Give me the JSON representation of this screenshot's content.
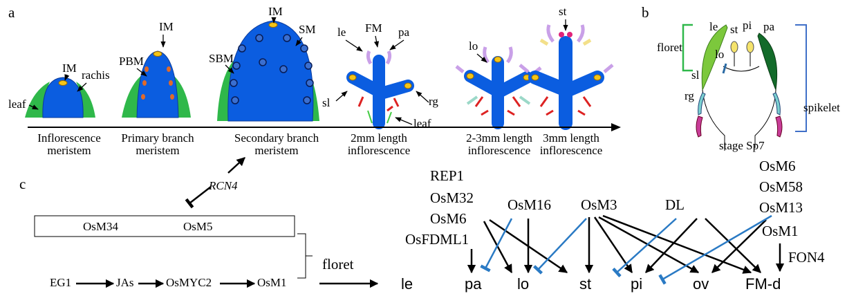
{
  "panel_a": {
    "label": "a",
    "stages": [
      {
        "caption": [
          "Inflorescence",
          "meristem"
        ],
        "annotations": [
          "IM",
          "rachis",
          "leaf"
        ]
      },
      {
        "caption": [
          "Primary branch",
          "meristem"
        ],
        "annotations": [
          "PBM",
          "IM"
        ]
      },
      {
        "caption": [
          "Secondary branch",
          "meristem"
        ],
        "annotations": [
          "IM",
          "SM",
          "SBM"
        ]
      },
      {
        "caption": [
          "2mm length",
          "inflorescence"
        ],
        "annotations": [
          "le",
          "FM",
          "pa",
          "sl",
          "rg",
          "leaf"
        ]
      },
      {
        "caption": [
          "2-3mm length",
          "inflorescence"
        ],
        "annotations": [
          "lo"
        ]
      },
      {
        "caption": [
          "3mm length",
          "inflorescence"
        ],
        "annotations": [
          "st"
        ]
      }
    ]
  },
  "panel_b": {
    "label": "b",
    "floret": "floret",
    "spikelet": "spikelet",
    "organs": [
      "le",
      "st",
      "pi",
      "pa",
      "lo",
      "sl",
      "rg"
    ],
    "stage": "stage Sp7"
  },
  "panel_c": {
    "label": "c",
    "rcn4": "RCN4",
    "box": [
      "OsM34",
      "OsM5"
    ],
    "pathway": [
      "EG1",
      "JAs",
      "OsMYC2",
      "OsM1"
    ],
    "floret": "floret",
    "regulators": [
      "REP1",
      "OsM32",
      "OsM6",
      "OsFDML1",
      "OsM16",
      "OsM3",
      "DL",
      "OsM6",
      "OsM58",
      "OsM13",
      "OsM1",
      "FON4"
    ],
    "targets": [
      "le",
      "pa",
      "lo",
      "st",
      "pi",
      "ov",
      "FM-d"
    ]
  }
}
